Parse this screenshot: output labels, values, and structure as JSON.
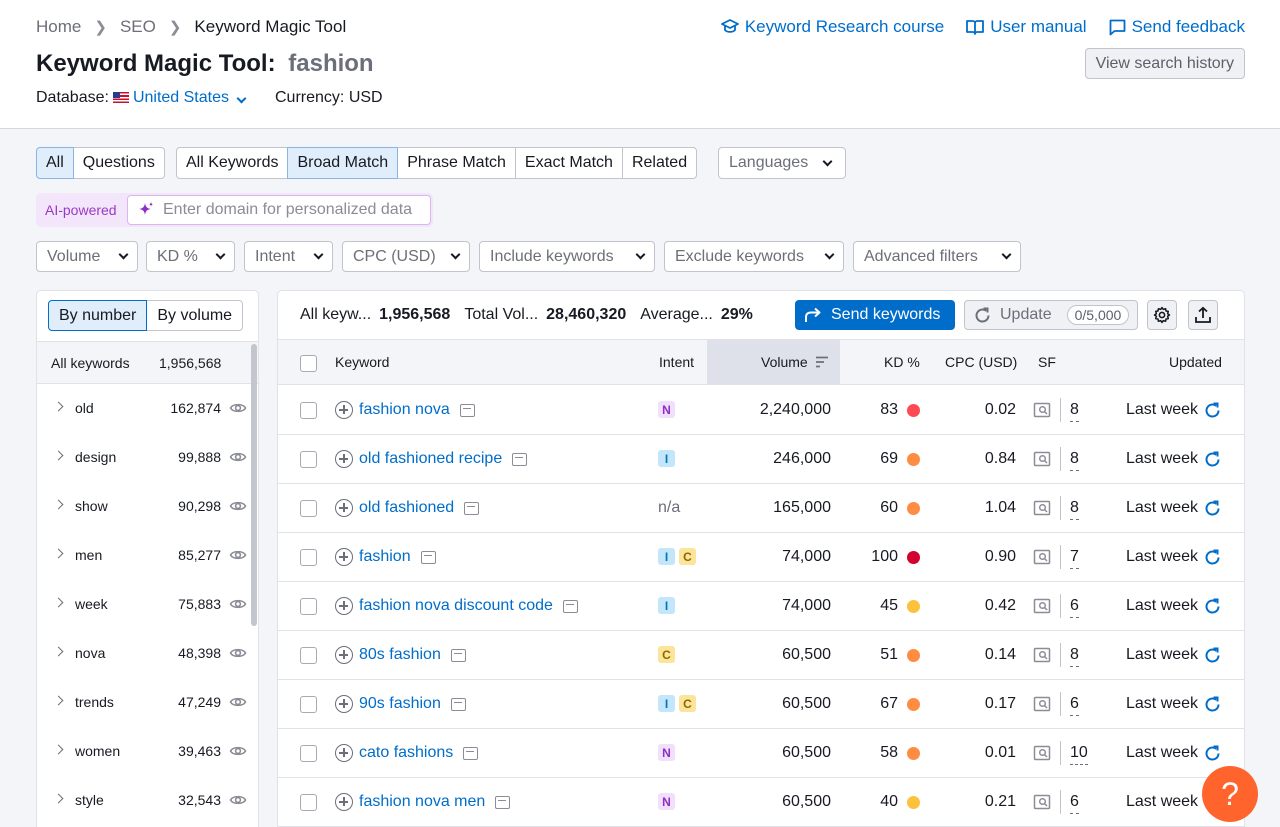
{
  "breadcrumb": [
    "Home",
    "SEO",
    "Keyword Magic Tool"
  ],
  "top_links": [
    {
      "icon": "graduation-cap-icon",
      "label": "Keyword Research course"
    },
    {
      "icon": "book-icon",
      "label": "User manual"
    },
    {
      "icon": "chat-icon",
      "label": "Send feedback"
    }
  ],
  "title": {
    "prefix": "Keyword Magic Tool:",
    "query": "fashion"
  },
  "database": {
    "label": "Database:",
    "value": "United States"
  },
  "currency": {
    "label": "Currency:",
    "value": "USD"
  },
  "history_button": "View search history",
  "scope_tabs": [
    {
      "label": "All",
      "active": true
    },
    {
      "label": "Questions",
      "active": false
    }
  ],
  "match_tabs": [
    {
      "label": "All Keywords",
      "active": false
    },
    {
      "label": "Broad Match",
      "active": true
    },
    {
      "label": "Phrase Match",
      "active": false
    },
    {
      "label": "Exact Match",
      "active": false
    },
    {
      "label": "Related",
      "active": false
    }
  ],
  "languages_dropdown": "Languages",
  "ai": {
    "label": "AI-powered",
    "placeholder": "Enter domain for personalized data"
  },
  "filters": [
    "Volume",
    "KD %",
    "Intent",
    "CPC (USD)",
    "Include keywords",
    "Exclude keywords",
    "Advanced filters"
  ],
  "sidebar": {
    "toggle": [
      {
        "label": "By number",
        "active": true
      },
      {
        "label": "By volume",
        "active": false
      }
    ],
    "all_label": "All keywords",
    "all_count": "1,956,568",
    "groups": [
      {
        "word": "old",
        "count": "162,874"
      },
      {
        "word": "design",
        "count": "99,888"
      },
      {
        "word": "show",
        "count": "90,298"
      },
      {
        "word": "men",
        "count": "85,277"
      },
      {
        "word": "week",
        "count": "75,883"
      },
      {
        "word": "nova",
        "count": "48,398"
      },
      {
        "word": "trends",
        "count": "47,249"
      },
      {
        "word": "women",
        "count": "39,463"
      },
      {
        "word": "style",
        "count": "32,543"
      }
    ]
  },
  "stats": {
    "all_label": "All keyw...",
    "all_value": "1,956,568",
    "volume_label": "Total Vol...",
    "volume_value": "28,460,320",
    "avg_label": "Average...",
    "avg_value": "29%"
  },
  "send_button": "Send keywords",
  "update_button": {
    "label": "Update",
    "quota": "0/5,000"
  },
  "columns": {
    "keyword": "Keyword",
    "intent": "Intent",
    "volume": "Volume",
    "kd": "KD %",
    "cpc": "CPC (USD)",
    "sf": "SF",
    "updated": "Updated"
  },
  "colors": {
    "accent": "#006dca",
    "kd_red": "#ff4953",
    "kd_dark_red": "#d1002f",
    "kd_orange": "#ff8c43",
    "kd_yellow": "#fdc23c",
    "help": "#ff642d"
  },
  "rows": [
    {
      "keyword": "fashion nova",
      "intent": [
        "N"
      ],
      "volume": "2,240,000",
      "kd": "83",
      "kd_color": "#ff4953",
      "cpc": "0.02",
      "sf": "8",
      "updated": "Last week"
    },
    {
      "keyword": "old fashioned recipe",
      "intent": [
        "I"
      ],
      "volume": "246,000",
      "kd": "69",
      "kd_color": "#ff8c43",
      "cpc": "0.84",
      "sf": "8",
      "updated": "Last week"
    },
    {
      "keyword": "old fashioned",
      "intent": [],
      "intent_text": "n/a",
      "volume": "165,000",
      "kd": "60",
      "kd_color": "#ff8c43",
      "cpc": "1.04",
      "sf": "8",
      "updated": "Last week"
    },
    {
      "keyword": "fashion",
      "intent": [
        "I",
        "C"
      ],
      "volume": "74,000",
      "kd": "100",
      "kd_color": "#d1002f",
      "cpc": "0.90",
      "sf": "7",
      "updated": "Last week"
    },
    {
      "keyword": "fashion nova discount code",
      "intent": [
        "I"
      ],
      "volume": "74,000",
      "kd": "45",
      "kd_color": "#fdc23c",
      "cpc": "0.42",
      "sf": "6",
      "updated": "Last week"
    },
    {
      "keyword": "80s fashion",
      "intent": [
        "C"
      ],
      "volume": "60,500",
      "kd": "51",
      "kd_color": "#ff8c43",
      "cpc": "0.14",
      "sf": "8",
      "updated": "Last week"
    },
    {
      "keyword": "90s fashion",
      "intent": [
        "I",
        "C"
      ],
      "volume": "60,500",
      "kd": "67",
      "kd_color": "#ff8c43",
      "cpc": "0.17",
      "sf": "6",
      "updated": "Last week"
    },
    {
      "keyword": "cato fashions",
      "intent": [
        "N"
      ],
      "volume": "60,500",
      "kd": "58",
      "kd_color": "#ff8c43",
      "cpc": "0.01",
      "sf": "10",
      "updated": "Last week"
    },
    {
      "keyword": "fashion nova men",
      "intent": [
        "N"
      ],
      "volume": "60,500",
      "kd": "40",
      "kd_color": "#fdc23c",
      "cpc": "0.21",
      "sf": "6",
      "updated": "Last week"
    }
  ],
  "help_label": "?"
}
